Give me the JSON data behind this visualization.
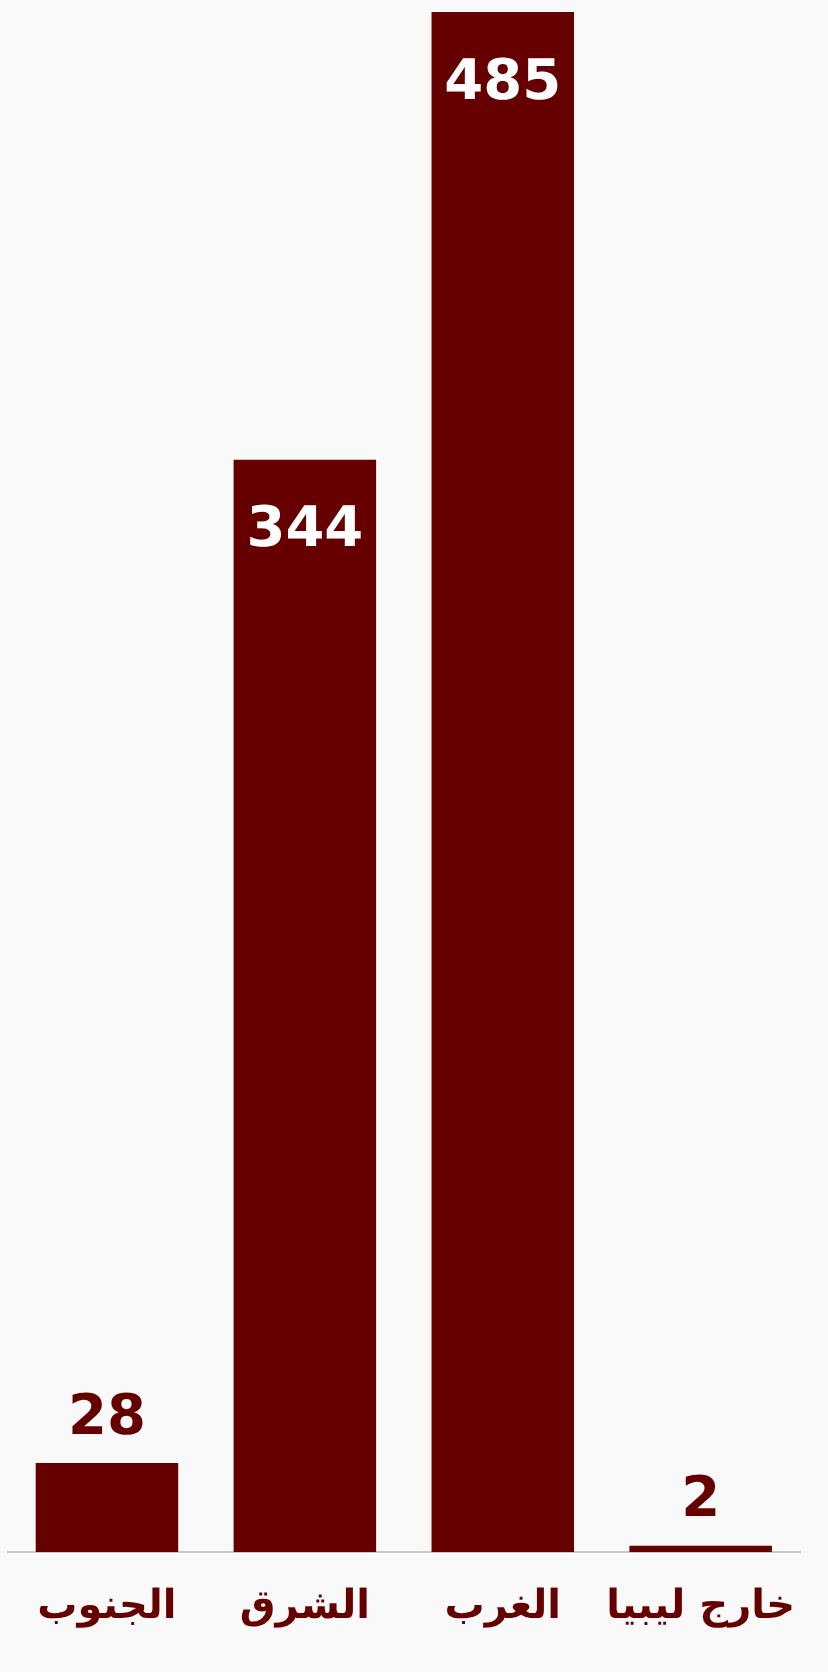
{
  "chart_data": {
    "type": "bar",
    "categories": [
      "الجنوب",
      "الشرق",
      "الغرب",
      "خارج ليبيا"
    ],
    "values": [
      28,
      344,
      485,
      2
    ],
    "color": "#660000",
    "ylim": [
      0,
      485
    ],
    "tick_labels": "x",
    "legend": false,
    "data_labels": true
  }
}
